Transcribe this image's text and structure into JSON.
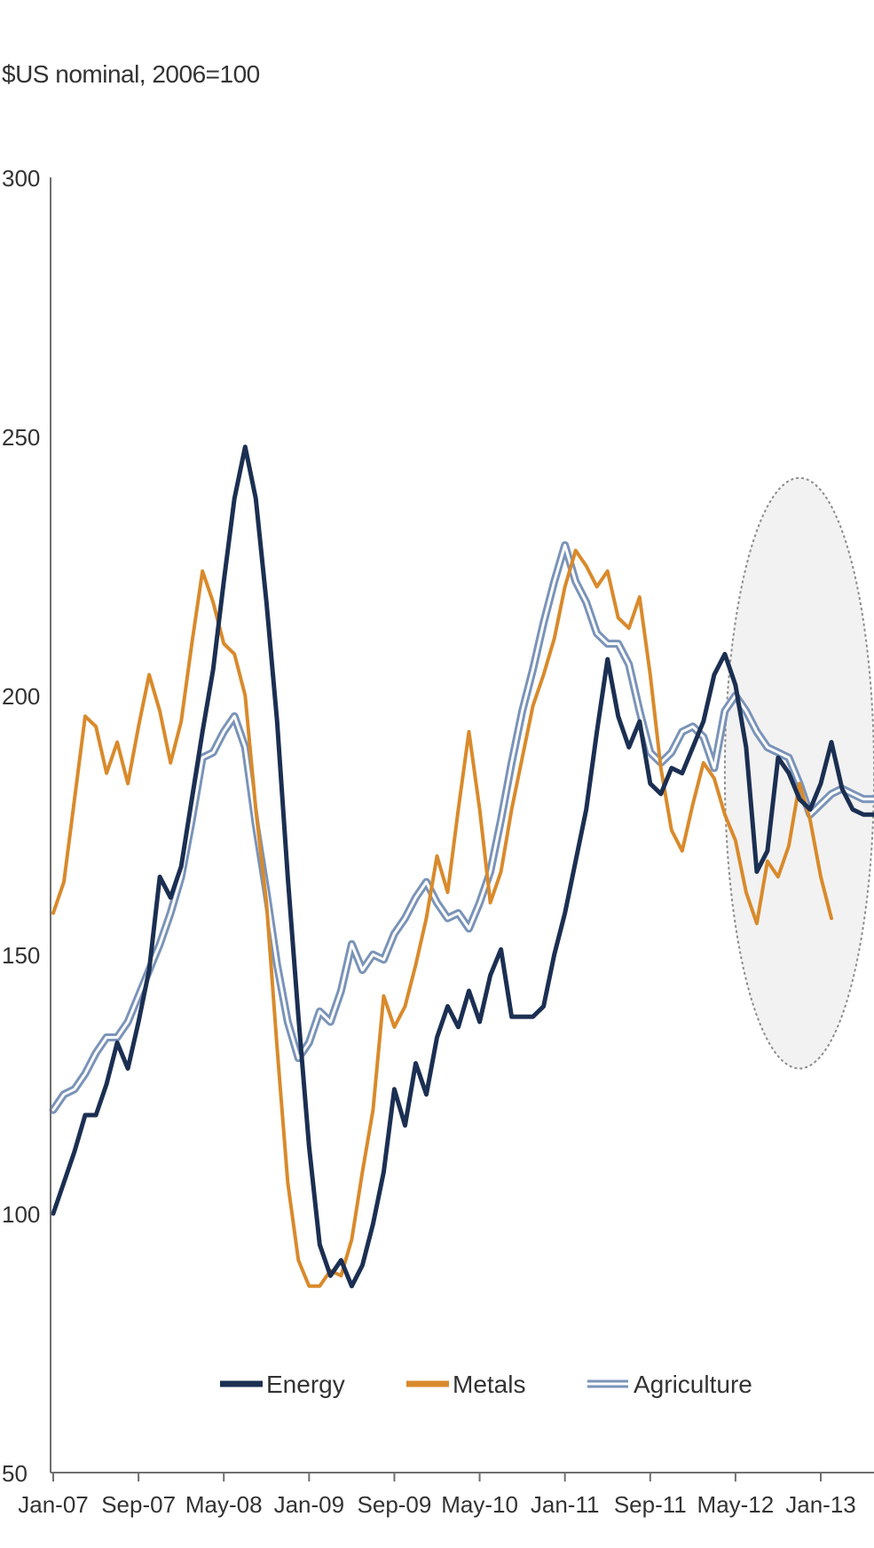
{
  "chart_data": {
    "type": "line",
    "ylabel": "$US nominal, 2006=100",
    "ylim": [
      50,
      300
    ],
    "yticks": [
      50,
      100,
      150,
      200,
      250,
      300
    ],
    "xticks": [
      "Jan-07",
      "Sep-07",
      "May-08",
      "Jan-09",
      "Sep-09",
      "May-10",
      "Jan-11",
      "Sep-11",
      "May-12",
      "Jan-13"
    ],
    "xlim_months": [
      0,
      77
    ],
    "legend_position": "bottom-center",
    "grid": false,
    "highlight": {
      "type": "ellipse",
      "x_range": [
        "Apr-12",
        "Jun-13"
      ],
      "y_range": [
        128,
        242
      ],
      "color": "#f2f2f2"
    },
    "series": [
      {
        "name": "Energy",
        "color": "#1b2f52",
        "style": "solid",
        "points": [
          [
            0,
            100
          ],
          [
            1,
            106
          ],
          [
            2,
            112
          ],
          [
            3,
            119
          ],
          [
            4,
            119
          ],
          [
            5,
            125
          ],
          [
            6,
            133
          ],
          [
            7,
            128
          ],
          [
            8,
            137
          ],
          [
            9,
            147
          ],
          [
            10,
            165
          ],
          [
            11,
            161
          ],
          [
            12,
            167
          ],
          [
            13,
            180
          ],
          [
            14,
            193
          ],
          [
            15,
            205
          ],
          [
            16,
            222
          ],
          [
            17,
            238
          ],
          [
            18,
            248
          ],
          [
            19,
            238
          ],
          [
            20,
            218
          ],
          [
            21,
            195
          ],
          [
            22,
            165
          ],
          [
            23,
            138
          ],
          [
            24,
            113
          ],
          [
            25,
            94
          ],
          [
            26,
            88
          ],
          [
            27,
            91
          ],
          [
            28,
            86
          ],
          [
            29,
            90
          ],
          [
            30,
            98
          ],
          [
            31,
            108
          ],
          [
            32,
            124
          ],
          [
            33,
            117
          ],
          [
            34,
            129
          ],
          [
            35,
            123
          ],
          [
            36,
            134
          ],
          [
            37,
            140
          ],
          [
            38,
            136
          ],
          [
            39,
            143
          ],
          [
            40,
            137
          ],
          [
            41,
            146
          ],
          [
            42,
            151
          ],
          [
            43,
            138
          ],
          [
            44,
            138
          ],
          [
            45,
            138
          ],
          [
            46,
            140
          ],
          [
            47,
            150
          ],
          [
            48,
            158
          ],
          [
            49,
            168
          ],
          [
            50,
            178
          ],
          [
            51,
            193
          ],
          [
            52,
            207
          ],
          [
            53,
            196
          ],
          [
            54,
            190
          ],
          [
            55,
            195
          ],
          [
            56,
            183
          ],
          [
            57,
            181
          ],
          [
            58,
            186
          ],
          [
            59,
            185
          ],
          [
            60,
            190
          ],
          [
            61,
            195
          ],
          [
            62,
            204
          ],
          [
            63,
            208
          ],
          [
            64,
            202
          ],
          [
            65,
            190
          ],
          [
            66,
            166
          ],
          [
            67,
            170
          ],
          [
            68,
            188
          ],
          [
            69,
            185
          ],
          [
            70,
            180
          ],
          [
            71,
            178
          ],
          [
            72,
            183
          ],
          [
            73,
            191
          ],
          [
            74,
            182
          ],
          [
            75,
            178
          ],
          [
            76,
            177
          ],
          [
            77,
            177
          ]
        ]
      },
      {
        "name": "Metals",
        "color": "#d98a2b",
        "style": "solid",
        "points": [
          [
            0,
            158
          ],
          [
            1,
            164
          ],
          [
            2,
            180
          ],
          [
            3,
            196
          ],
          [
            4,
            194
          ],
          [
            5,
            185
          ],
          [
            6,
            191
          ],
          [
            7,
            183
          ],
          [
            8,
            194
          ],
          [
            9,
            204
          ],
          [
            10,
            197
          ],
          [
            11,
            187
          ],
          [
            12,
            195
          ],
          [
            13,
            210
          ],
          [
            14,
            224
          ],
          [
            15,
            218
          ],
          [
            16,
            210
          ],
          [
            17,
            208
          ],
          [
            18,
            200
          ],
          [
            19,
            178
          ],
          [
            20,
            160
          ],
          [
            21,
            132
          ],
          [
            22,
            106
          ],
          [
            23,
            91
          ],
          [
            24,
            86
          ],
          [
            25,
            86
          ],
          [
            26,
            89
          ],
          [
            27,
            88
          ],
          [
            28,
            95
          ],
          [
            29,
            108
          ],
          [
            30,
            120
          ],
          [
            31,
            142
          ],
          [
            32,
            136
          ],
          [
            33,
            140
          ],
          [
            34,
            148
          ],
          [
            35,
            157
          ],
          [
            36,
            169
          ],
          [
            37,
            162
          ],
          [
            38,
            178
          ],
          [
            39,
            193
          ],
          [
            40,
            178
          ],
          [
            41,
            160
          ],
          [
            42,
            166
          ],
          [
            43,
            178
          ],
          [
            44,
            188
          ],
          [
            45,
            198
          ],
          [
            46,
            204
          ],
          [
            47,
            211
          ],
          [
            48,
            221
          ],
          [
            49,
            228
          ],
          [
            50,
            225
          ],
          [
            51,
            221
          ],
          [
            52,
            224
          ],
          [
            53,
            215
          ],
          [
            54,
            213
          ],
          [
            55,
            219
          ],
          [
            56,
            204
          ],
          [
            57,
            186
          ],
          [
            58,
            174
          ],
          [
            59,
            170
          ],
          [
            60,
            179
          ],
          [
            61,
            187
          ],
          [
            62,
            184
          ],
          [
            63,
            177
          ],
          [
            64,
            172
          ],
          [
            65,
            162
          ],
          [
            66,
            156
          ],
          [
            67,
            168
          ],
          [
            68,
            165
          ],
          [
            69,
            171
          ],
          [
            70,
            183
          ],
          [
            71,
            176
          ],
          [
            72,
            165
          ],
          [
            73,
            157
          ]
        ]
      },
      {
        "name": "Agriculture",
        "color": "#7a93b8",
        "style": "double",
        "points": [
          [
            0,
            120
          ],
          [
            1,
            123
          ],
          [
            2,
            124
          ],
          [
            3,
            127
          ],
          [
            4,
            131
          ],
          [
            5,
            134
          ],
          [
            6,
            134
          ],
          [
            7,
            137
          ],
          [
            8,
            142
          ],
          [
            9,
            147
          ],
          [
            10,
            152
          ],
          [
            11,
            158
          ],
          [
            12,
            165
          ],
          [
            13,
            176
          ],
          [
            14,
            188
          ],
          [
            15,
            189
          ],
          [
            16,
            193
          ],
          [
            17,
            196
          ],
          [
            18,
            190
          ],
          [
            19,
            175
          ],
          [
            20,
            162
          ],
          [
            21,
            148
          ],
          [
            22,
            137
          ],
          [
            23,
            130
          ],
          [
            24,
            133
          ],
          [
            25,
            139
          ],
          [
            26,
            137
          ],
          [
            27,
            143
          ],
          [
            28,
            152
          ],
          [
            29,
            147
          ],
          [
            30,
            150
          ],
          [
            31,
            149
          ],
          [
            32,
            154
          ],
          [
            33,
            157
          ],
          [
            34,
            161
          ],
          [
            35,
            164
          ],
          [
            36,
            160
          ],
          [
            37,
            157
          ],
          [
            38,
            158
          ],
          [
            39,
            155
          ],
          [
            40,
            160
          ],
          [
            41,
            166
          ],
          [
            42,
            176
          ],
          [
            43,
            187
          ],
          [
            44,
            197
          ],
          [
            45,
            205
          ],
          [
            46,
            214
          ],
          [
            47,
            222
          ],
          [
            48,
            229
          ],
          [
            49,
            222
          ],
          [
            50,
            218
          ],
          [
            51,
            212
          ],
          [
            52,
            210
          ],
          [
            53,
            210
          ],
          [
            54,
            206
          ],
          [
            55,
            197
          ],
          [
            56,
            189
          ],
          [
            57,
            187
          ],
          [
            58,
            189
          ],
          [
            59,
            193
          ],
          [
            60,
            194
          ],
          [
            61,
            192
          ],
          [
            62,
            186
          ],
          [
            63,
            197
          ],
          [
            64,
            200
          ],
          [
            65,
            197
          ],
          [
            66,
            193
          ],
          [
            67,
            190
          ],
          [
            68,
            189
          ],
          [
            69,
            188
          ],
          [
            70,
            183
          ],
          [
            71,
            177
          ],
          [
            72,
            179
          ],
          [
            73,
            181
          ],
          [
            74,
            182
          ],
          [
            75,
            181
          ],
          [
            76,
            180
          ],
          [
            77,
            180
          ]
        ]
      }
    ]
  }
}
